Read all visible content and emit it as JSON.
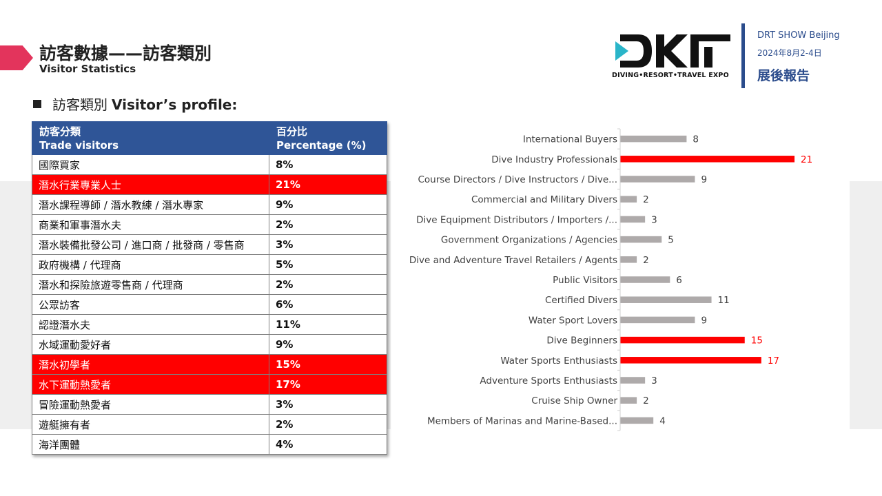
{
  "header": {
    "title_zh": "訪客數據——訪客類別",
    "title_en": "Visitor Statistics"
  },
  "brand": {
    "logo_caption": "DIVING•RESORT•TRAVEL EXPO",
    "show_name": "DRT SHOW Beijing",
    "show_date": "2024年8月2-4日",
    "report_label": "展後報告",
    "accent_color": "#2b4c8c",
    "marker_color": "#e3345c"
  },
  "section": {
    "title_zh": "訪客類別",
    "title_en": "Visitor’s profile:"
  },
  "table": {
    "header_col1": [
      "訪客分類",
      "Trade visitors"
    ],
    "header_col2": [
      "百分比",
      "Percentage (%)"
    ],
    "header_color": "#2f5597",
    "highlight_color": "#ff0000",
    "rows": [
      {
        "category": "國際買家",
        "percent": "8%",
        "highlight": false
      },
      {
        "category": "潛水行業專業人士",
        "percent": "21%",
        "highlight": true
      },
      {
        "category": "潛水課程導師 / 潛水教練 / 潛水專家",
        "percent": "9%",
        "highlight": false
      },
      {
        "category": "商業和軍事潛水夫",
        "percent": "2%",
        "highlight": false
      },
      {
        "category": "潛水裝備批發公司 / 進口商 / 批發商 / 零售商",
        "percent": "3%",
        "highlight": false
      },
      {
        "category": "政府機構 / 代理商",
        "percent": "5%",
        "highlight": false
      },
      {
        "category": "潛水和探險旅遊零售商 / 代理商",
        "percent": "2%",
        "highlight": false
      },
      {
        "category": "公眾訪客",
        "percent": "6%",
        "highlight": false
      },
      {
        "category": "認證潛水夫",
        "percent": "11%",
        "highlight": false
      },
      {
        "category": "水域運動愛好者",
        "percent": "9%",
        "highlight": false
      },
      {
        "category": "潛水初學者",
        "percent": "15%",
        "highlight": true
      },
      {
        "category": "水下運動熱愛者",
        "percent": "17%",
        "highlight": true
      },
      {
        "category": "冒險運動熱愛者",
        "percent": "3%",
        "highlight": false
      },
      {
        "category": "遊艇擁有者",
        "percent": "2%",
        "highlight": false
      },
      {
        "category": "海洋團體",
        "percent": "4%",
        "highlight": false
      }
    ]
  },
  "chart_data": {
    "type": "bar",
    "orientation": "horizontal",
    "title": "",
    "xlabel": "",
    "ylabel": "",
    "categories": [
      "International Buyers",
      "Dive Industry Professionals",
      "Course Directors / Dive Instructors / Dive...",
      "Commercial and Military Divers",
      "Dive Equipment Distributors / Importers /...",
      "Government Organizations / Agencies",
      "Dive and Adventure Travel Retailers / Agents",
      "Public Visitors",
      "Certified Divers",
      "Water Sport Lovers",
      "Dive Beginners",
      "Water Sports Enthusiasts",
      "Adventure Sports Enthusiasts",
      "Cruise Ship Owner",
      "Members of Marinas and Marine-Based..."
    ],
    "values": [
      8,
      21,
      9,
      2,
      3,
      5,
      2,
      6,
      11,
      9,
      15,
      17,
      3,
      2,
      4
    ],
    "highlighted": [
      false,
      true,
      false,
      false,
      false,
      false,
      false,
      false,
      false,
      false,
      true,
      true,
      false,
      false,
      false
    ],
    "xlim": [
      0,
      21
    ],
    "grid": false,
    "legend": "none",
    "colors": {
      "default": "#aeaaaa",
      "highlight": "#ff0000",
      "label_default": "#404040",
      "label_highlight": "#ff0000"
    }
  }
}
